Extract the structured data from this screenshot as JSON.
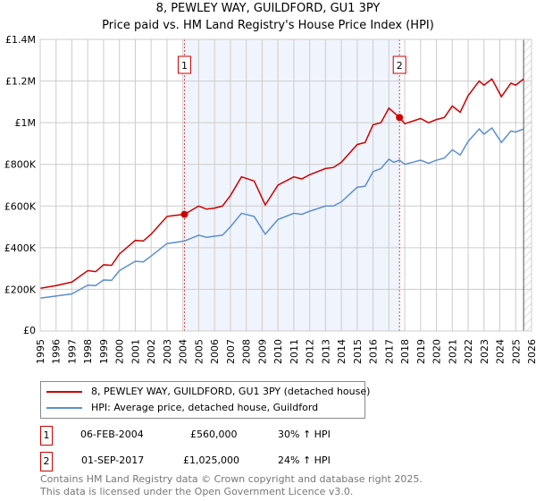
{
  "title": "8, PEWLEY WAY, GUILDFORD, GU1 3PY",
  "subtitle": "Price paid vs. HM Land Registry's House Price Index (HPI)",
  "chart_data": {
    "type": "line",
    "title": "8, PEWLEY WAY, GUILDFORD, GU1 3PY",
    "subtitle": "Price paid vs. HM Land Registry's House Price Index (HPI)",
    "xlim": [
      1995,
      2026
    ],
    "ylim": [
      0,
      1400000
    ],
    "x_ticks": [
      "1995",
      "1996",
      "1997",
      "1998",
      "1999",
      "2000",
      "2001",
      "2002",
      "2003",
      "2004",
      "2005",
      "2006",
      "2007",
      "2008",
      "2009",
      "2010",
      "2011",
      "2012",
      "2013",
      "2014",
      "2015",
      "2016",
      "2017",
      "2018",
      "2019",
      "2020",
      "2021",
      "2022",
      "2023",
      "2024",
      "2025",
      "2026"
    ],
    "y_ticks": [
      {
        "v": 0,
        "label": "£0"
      },
      {
        "v": 200000,
        "label": "£200K"
      },
      {
        "v": 400000,
        "label": "£400K"
      },
      {
        "v": 600000,
        "label": "£600K"
      },
      {
        "v": 800000,
        "label": "£800K"
      },
      {
        "v": 1000000,
        "label": "£1M"
      },
      {
        "v": 1200000,
        "label": "£1.2M"
      },
      {
        "v": 1400000,
        "label": "£1.4M"
      }
    ],
    "grid": true,
    "series": [
      {
        "name": "8, PEWLEY WAY, GUILDFORD, GU1 3PY (detached house)",
        "color": "#cc0000",
        "x": [
          1995,
          1996,
          1997,
          1998,
          1998.5,
          1999,
          1999.5,
          2000,
          2001,
          2001.5,
          2002,
          2003,
          2003.5,
          2004.1,
          2005,
          2005.5,
          2006,
          2006.5,
          2007,
          2007.7,
          2008.5,
          2009.2,
          2010,
          2011,
          2011.5,
          2012,
          2013,
          2013.5,
          2014,
          2015,
          2015.5,
          2016,
          2016.5,
          2017,
          2017.3,
          2017.67,
          2018,
          2019,
          2019.5,
          2020,
          2020.5,
          2021,
          2021.5,
          2022,
          2022.7,
          2023,
          2023.5,
          2024.1,
          2024.7,
          2025,
          2025.5
        ],
        "y": [
          205000,
          218000,
          235000,
          290000,
          285000,
          318000,
          315000,
          370000,
          435000,
          432000,
          465000,
          550000,
          555000,
          560000,
          600000,
          585000,
          590000,
          600000,
          650000,
          740000,
          720000,
          605000,
          700000,
          740000,
          730000,
          750000,
          780000,
          785000,
          810000,
          895000,
          905000,
          990000,
          1000000,
          1070000,
          1050000,
          1025000,
          995000,
          1020000,
          1000000,
          1015000,
          1025000,
          1080000,
          1050000,
          1130000,
          1200000,
          1180000,
          1210000,
          1125000,
          1190000,
          1180000,
          1210000
        ]
      },
      {
        "name": "HPI: Average price, detached house, Guildford",
        "color": "#5b8fd0",
        "x": [
          1995,
          1996,
          1997,
          1998,
          1998.5,
          1999,
          1999.5,
          2000,
          2001,
          2001.5,
          2002,
          2003,
          2003.5,
          2004.1,
          2005,
          2005.5,
          2006,
          2006.5,
          2007,
          2007.7,
          2008.5,
          2009.2,
          2010,
          2011,
          2011.5,
          2012,
          2013,
          2013.5,
          2014,
          2015,
          2015.5,
          2016,
          2016.5,
          2017,
          2017.3,
          2017.67,
          2018,
          2019,
          2019.5,
          2020,
          2020.5,
          2021,
          2021.5,
          2022,
          2022.7,
          2023,
          2023.5,
          2024.1,
          2024.7,
          2025,
          2025.5
        ],
        "y": [
          158000,
          168000,
          178000,
          220000,
          218000,
          245000,
          243000,
          290000,
          335000,
          332000,
          360000,
          420000,
          425000,
          432000,
          460000,
          450000,
          455000,
          460000,
          500000,
          565000,
          550000,
          465000,
          535000,
          565000,
          560000,
          575000,
          600000,
          600000,
          620000,
          690000,
          695000,
          765000,
          780000,
          825000,
          810000,
          820000,
          800000,
          820000,
          805000,
          820000,
          830000,
          870000,
          845000,
          910000,
          970000,
          945000,
          975000,
          905000,
          960000,
          955000,
          970000
        ]
      }
    ],
    "sales": [
      {
        "label": "1",
        "x": 2004.1,
        "y": 560000
      },
      {
        "label": "2",
        "x": 2017.67,
        "y": 1025000
      }
    ],
    "shaded_range": [
      2004.1,
      2017.67
    ],
    "hatched_from": 2025.5
  },
  "legend": [
    {
      "label": "8, PEWLEY WAY, GUILDFORD, GU1 3PY (detached house)",
      "color": "#cc0000"
    },
    {
      "label": "HPI: Average price, detached house, Guildford",
      "color": "#5b8fd0"
    }
  ],
  "table": [
    {
      "num": "1",
      "date": "06-FEB-2004",
      "price": "£560,000",
      "hpi": "30% ↑ HPI"
    },
    {
      "num": "2",
      "date": "01-SEP-2017",
      "price": "£1,025,000",
      "hpi": "24% ↑ HPI"
    }
  ],
  "footer": [
    "Contains HM Land Registry data © Crown copyright and database right 2025.",
    "This data is licensed under the Open Government Licence v3.0."
  ]
}
